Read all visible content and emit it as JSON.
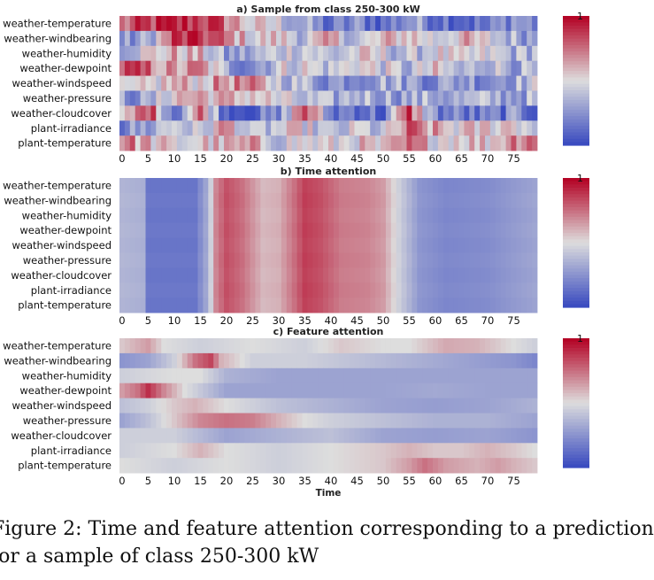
{
  "caption": {
    "line1": "Figure 2: Time and feature attention corresponding to a prediction",
    "line2": "for a sample of class 250-300 kW"
  },
  "colormap": {
    "low": "#3b4cc0",
    "mid": "#dddddd",
    "high": "#b40426"
  },
  "chart_data": [
    {
      "type": "heatmap",
      "title": "a) Sample from class 250-300 kW",
      "xlabel": "",
      "x_ticks": [
        0,
        5,
        10,
        15,
        20,
        25,
        30,
        35,
        40,
        45,
        50,
        55,
        60,
        65,
        70,
        75
      ],
      "n_time": 80,
      "features": [
        "weather-temperature",
        "weather-windbearing",
        "weather-humidity",
        "weather-dewpoint",
        "weather-windspeed",
        "weather-pressure",
        "weather-cloudcover",
        "plant-irradiance",
        "plant-temperature"
      ],
      "value_range": [
        0,
        1
      ],
      "colorbar_tick": "1",
      "keypoints": [
        [
          [
            0,
            0.72
          ],
          [
            5,
            0.85
          ],
          [
            10,
            0.88
          ],
          [
            15,
            0.92
          ],
          [
            20,
            0.75
          ],
          [
            25,
            0.5
          ],
          [
            30,
            0.45
          ],
          [
            35,
            0.3
          ],
          [
            40,
            0.1
          ],
          [
            45,
            0.22
          ],
          [
            50,
            0.1
          ],
          [
            55,
            0.3
          ],
          [
            60,
            0.2
          ],
          [
            65,
            0.15
          ],
          [
            70,
            0.1
          ],
          [
            75,
            0.3
          ],
          [
            79,
            0.2
          ]
        ],
        [
          [
            0,
            0.2
          ],
          [
            5,
            0.3
          ],
          [
            10,
            0.85
          ],
          [
            15,
            0.9
          ],
          [
            20,
            0.7
          ],
          [
            25,
            0.5
          ],
          [
            30,
            0.55
          ],
          [
            35,
            0.4
          ],
          [
            40,
            0.6
          ],
          [
            45,
            0.35
          ],
          [
            50,
            0.55
          ],
          [
            55,
            0.6
          ],
          [
            60,
            0.45
          ],
          [
            65,
            0.6
          ],
          [
            70,
            0.45
          ],
          [
            75,
            0.35
          ],
          [
            79,
            0.3
          ]
        ],
        [
          [
            0,
            0.4
          ],
          [
            5,
            0.5
          ],
          [
            10,
            0.6
          ],
          [
            15,
            0.55
          ],
          [
            20,
            0.25
          ],
          [
            25,
            0.3
          ],
          [
            30,
            0.45
          ],
          [
            35,
            0.5
          ],
          [
            40,
            0.35
          ],
          [
            45,
            0.5
          ],
          [
            50,
            0.45
          ],
          [
            55,
            0.35
          ],
          [
            60,
            0.5
          ],
          [
            65,
            0.4
          ],
          [
            70,
            0.45
          ],
          [
            75,
            0.35
          ],
          [
            79,
            0.4
          ]
        ],
        [
          [
            0,
            0.82
          ],
          [
            5,
            0.75
          ],
          [
            10,
            0.6
          ],
          [
            15,
            0.7
          ],
          [
            20,
            0.3
          ],
          [
            25,
            0.25
          ],
          [
            30,
            0.45
          ],
          [
            35,
            0.5
          ],
          [
            40,
            0.4
          ],
          [
            45,
            0.55
          ],
          [
            50,
            0.45
          ],
          [
            55,
            0.35
          ],
          [
            60,
            0.5
          ],
          [
            65,
            0.3
          ],
          [
            70,
            0.45
          ],
          [
            75,
            0.35
          ],
          [
            79,
            0.3
          ]
        ],
        [
          [
            0,
            0.35
          ],
          [
            5,
            0.45
          ],
          [
            10,
            0.6
          ],
          [
            15,
            0.55
          ],
          [
            20,
            0.7
          ],
          [
            25,
            0.65
          ],
          [
            30,
            0.45
          ],
          [
            35,
            0.35
          ],
          [
            40,
            0.25
          ],
          [
            45,
            0.3
          ],
          [
            50,
            0.35
          ],
          [
            55,
            0.3
          ],
          [
            60,
            0.25
          ],
          [
            65,
            0.3
          ],
          [
            70,
            0.25
          ],
          [
            75,
            0.35
          ],
          [
            79,
            0.4
          ]
        ],
        [
          [
            0,
            0.3
          ],
          [
            5,
            0.25
          ],
          [
            10,
            0.6
          ],
          [
            15,
            0.65
          ],
          [
            20,
            0.55
          ],
          [
            25,
            0.6
          ],
          [
            30,
            0.45
          ],
          [
            35,
            0.35
          ],
          [
            40,
            0.3
          ],
          [
            45,
            0.4
          ],
          [
            50,
            0.35
          ],
          [
            55,
            0.3
          ],
          [
            60,
            0.35
          ],
          [
            65,
            0.3
          ],
          [
            70,
            0.35
          ],
          [
            75,
            0.3
          ],
          [
            79,
            0.35
          ]
        ],
        [
          [
            0,
            0.4
          ],
          [
            5,
            0.9
          ],
          [
            10,
            0.15
          ],
          [
            15,
            0.75
          ],
          [
            20,
            0.1
          ],
          [
            25,
            0.1
          ],
          [
            30,
            0.15
          ],
          [
            35,
            0.9
          ],
          [
            40,
            0.15
          ],
          [
            45,
            0.2
          ],
          [
            50,
            0.1
          ],
          [
            55,
            0.85
          ],
          [
            60,
            0.2
          ],
          [
            65,
            0.15
          ],
          [
            70,
            0.1
          ],
          [
            75,
            0.2
          ],
          [
            79,
            0.15
          ]
        ],
        [
          [
            0,
            0.2
          ],
          [
            5,
            0.3
          ],
          [
            10,
            0.5
          ],
          [
            15,
            0.35
          ],
          [
            20,
            0.7
          ],
          [
            25,
            0.3
          ],
          [
            30,
            0.45
          ],
          [
            35,
            0.5
          ],
          [
            40,
            0.3
          ],
          [
            45,
            0.45
          ],
          [
            50,
            0.35
          ],
          [
            55,
            0.75
          ],
          [
            60,
            0.6
          ],
          [
            65,
            0.5
          ],
          [
            70,
            0.55
          ],
          [
            75,
            0.6
          ],
          [
            79,
            0.4
          ]
        ],
        [
          [
            0,
            0.75
          ],
          [
            5,
            0.6
          ],
          [
            10,
            0.45
          ],
          [
            15,
            0.55
          ],
          [
            20,
            0.55
          ],
          [
            25,
            0.6
          ],
          [
            30,
            0.45
          ],
          [
            35,
            0.5
          ],
          [
            40,
            0.45
          ],
          [
            45,
            0.55
          ],
          [
            50,
            0.45
          ],
          [
            55,
            0.7
          ],
          [
            60,
            0.55
          ],
          [
            65,
            0.6
          ],
          [
            70,
            0.55
          ],
          [
            75,
            0.75
          ],
          [
            79,
            0.85
          ]
        ]
      ],
      "noise": 0.18
    },
    {
      "type": "heatmap",
      "title": "b) Time attention",
      "xlabel": "",
      "x_ticks": [
        0,
        5,
        10,
        15,
        20,
        25,
        30,
        35,
        40,
        45,
        50,
        55,
        60,
        65,
        70,
        75
      ],
      "n_time": 80,
      "features": [
        "weather-temperature",
        "weather-windbearing",
        "weather-humidity",
        "weather-dewpoint",
        "weather-windspeed",
        "weather-pressure",
        "weather-cloudcover",
        "plant-irradiance",
        "plant-temperature"
      ],
      "value_range": [
        0,
        1
      ],
      "colorbar_tick": "1",
      "profile": [
        [
          0,
          0.36
        ],
        [
          4,
          0.34
        ],
        [
          5,
          0.14
        ],
        [
          14,
          0.14
        ],
        [
          16,
          0.3
        ],
        [
          17,
          0.45
        ],
        [
          18,
          0.7
        ],
        [
          20,
          0.82
        ],
        [
          23,
          0.75
        ],
        [
          27,
          0.58
        ],
        [
          30,
          0.6
        ],
        [
          33,
          0.75
        ],
        [
          35,
          0.86
        ],
        [
          38,
          0.82
        ],
        [
          42,
          0.72
        ],
        [
          47,
          0.7
        ],
        [
          50,
          0.65
        ],
        [
          53,
          0.45
        ],
        [
          57,
          0.25
        ],
        [
          62,
          0.2
        ],
        [
          70,
          0.22
        ],
        [
          79,
          0.3
        ]
      ],
      "noise": 0.0
    },
    {
      "type": "heatmap",
      "title": "c) Feature attention",
      "xlabel": "Time",
      "x_ticks": [
        0,
        5,
        10,
        15,
        20,
        25,
        30,
        35,
        40,
        45,
        50,
        55,
        60,
        65,
        70,
        75
      ],
      "n_time": 80,
      "features": [
        "weather-temperature",
        "weather-windbearing",
        "weather-humidity",
        "weather-dewpoint",
        "weather-windspeed",
        "weather-pressure",
        "weather-cloudcover",
        "plant-irradiance",
        "plant-temperature"
      ],
      "value_range": [
        0,
        1
      ],
      "colorbar_tick": "1",
      "keypoints": [
        [
          [
            0,
            0.55
          ],
          [
            5,
            0.65
          ],
          [
            8,
            0.5
          ],
          [
            15,
            0.45
          ],
          [
            25,
            0.5
          ],
          [
            35,
            0.45
          ],
          [
            42,
            0.55
          ],
          [
            50,
            0.5
          ],
          [
            55,
            0.5
          ],
          [
            62,
            0.62
          ],
          [
            68,
            0.6
          ],
          [
            75,
            0.5
          ],
          [
            79,
            0.45
          ]
        ],
        [
          [
            0,
            0.25
          ],
          [
            5,
            0.3
          ],
          [
            10,
            0.45
          ],
          [
            14,
            0.75
          ],
          [
            17,
            0.85
          ],
          [
            19,
            0.6
          ],
          [
            25,
            0.45
          ],
          [
            35,
            0.45
          ],
          [
            45,
            0.4
          ],
          [
            55,
            0.35
          ],
          [
            65,
            0.3
          ],
          [
            75,
            0.25
          ],
          [
            79,
            0.2
          ]
        ],
        [
          [
            0,
            0.45
          ],
          [
            10,
            0.5
          ],
          [
            15,
            0.5
          ],
          [
            20,
            0.35
          ],
          [
            30,
            0.3
          ],
          [
            40,
            0.3
          ],
          [
            50,
            0.3
          ],
          [
            60,
            0.3
          ],
          [
            70,
            0.3
          ],
          [
            79,
            0.3
          ]
        ],
        [
          [
            0,
            0.65
          ],
          [
            3,
            0.75
          ],
          [
            5,
            0.9
          ],
          [
            8,
            0.7
          ],
          [
            12,
            0.5
          ],
          [
            20,
            0.3
          ],
          [
            30,
            0.3
          ],
          [
            40,
            0.3
          ],
          [
            50,
            0.3
          ],
          [
            60,
            0.32
          ],
          [
            70,
            0.3
          ],
          [
            79,
            0.3
          ]
        ],
        [
          [
            0,
            0.4
          ],
          [
            5,
            0.45
          ],
          [
            10,
            0.55
          ],
          [
            14,
            0.6
          ],
          [
            20,
            0.5
          ],
          [
            25,
            0.45
          ],
          [
            30,
            0.4
          ],
          [
            40,
            0.35
          ],
          [
            50,
            0.3
          ],
          [
            60,
            0.28
          ],
          [
            70,
            0.3
          ],
          [
            79,
            0.35
          ]
        ],
        [
          [
            0,
            0.3
          ],
          [
            5,
            0.4
          ],
          [
            10,
            0.55
          ],
          [
            15,
            0.7
          ],
          [
            20,
            0.75
          ],
          [
            25,
            0.72
          ],
          [
            30,
            0.6
          ],
          [
            35,
            0.5
          ],
          [
            40,
            0.45
          ],
          [
            50,
            0.4
          ],
          [
            60,
            0.35
          ],
          [
            70,
            0.35
          ],
          [
            79,
            0.3
          ]
        ],
        [
          [
            0,
            0.45
          ],
          [
            10,
            0.45
          ],
          [
            20,
            0.3
          ],
          [
            30,
            0.35
          ],
          [
            40,
            0.4
          ],
          [
            50,
            0.3
          ],
          [
            60,
            0.28
          ],
          [
            70,
            0.3
          ],
          [
            79,
            0.25
          ]
        ],
        [
          [
            0,
            0.45
          ],
          [
            10,
            0.5
          ],
          [
            15,
            0.6
          ],
          [
            20,
            0.5
          ],
          [
            30,
            0.45
          ],
          [
            40,
            0.5
          ],
          [
            50,
            0.55
          ],
          [
            55,
            0.6
          ],
          [
            60,
            0.55
          ],
          [
            65,
            0.55
          ],
          [
            70,
            0.6
          ],
          [
            75,
            0.55
          ],
          [
            79,
            0.5
          ]
        ],
        [
          [
            0,
            0.5
          ],
          [
            10,
            0.45
          ],
          [
            20,
            0.5
          ],
          [
            30,
            0.45
          ],
          [
            40,
            0.5
          ],
          [
            50,
            0.55
          ],
          [
            55,
            0.65
          ],
          [
            58,
            0.75
          ],
          [
            62,
            0.65
          ],
          [
            68,
            0.6
          ],
          [
            72,
            0.65
          ],
          [
            75,
            0.6
          ],
          [
            79,
            0.55
          ]
        ]
      ],
      "noise": 0.0
    }
  ]
}
